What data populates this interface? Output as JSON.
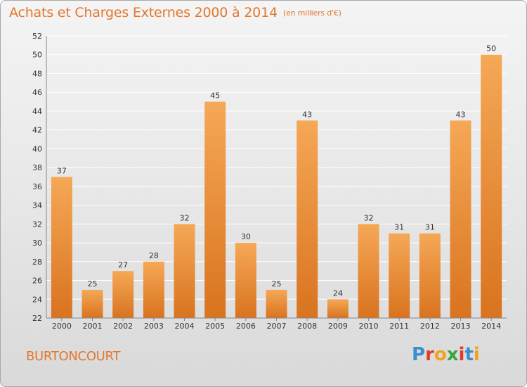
{
  "title": "Achats et Charges Externes 2000 à 2014",
  "unit": "(en milliers d'€)",
  "commune": "BURTONCOURT",
  "logo": {
    "letters": [
      "P",
      "r",
      "o",
      "x",
      "i",
      "t",
      "i"
    ],
    "colors": [
      "#3a8fd0",
      "#e23b2a",
      "#f2a31a",
      "#3aa33a",
      "#e23b2a",
      "#3a8fd0",
      "#f2a31a"
    ]
  },
  "colors": {
    "title": "#e2772d",
    "bar_top": "#f5a856",
    "bar_bottom": "#d9731f",
    "grid": "#ffffff"
  },
  "chart_data": {
    "type": "bar",
    "categories": [
      "2000",
      "2001",
      "2002",
      "2003",
      "2004",
      "2005",
      "2006",
      "2007",
      "2008",
      "2009",
      "2010",
      "2011",
      "2012",
      "2013",
      "2014"
    ],
    "values": [
      37,
      25,
      27,
      28,
      32,
      45,
      30,
      25,
      43,
      24,
      32,
      31,
      31,
      43,
      50
    ],
    "ylim": [
      22,
      52
    ],
    "yticks": [
      22,
      24,
      26,
      28,
      30,
      32,
      34,
      36,
      38,
      40,
      42,
      44,
      46,
      48,
      50,
      52
    ],
    "grid": true,
    "data_labels": true
  }
}
